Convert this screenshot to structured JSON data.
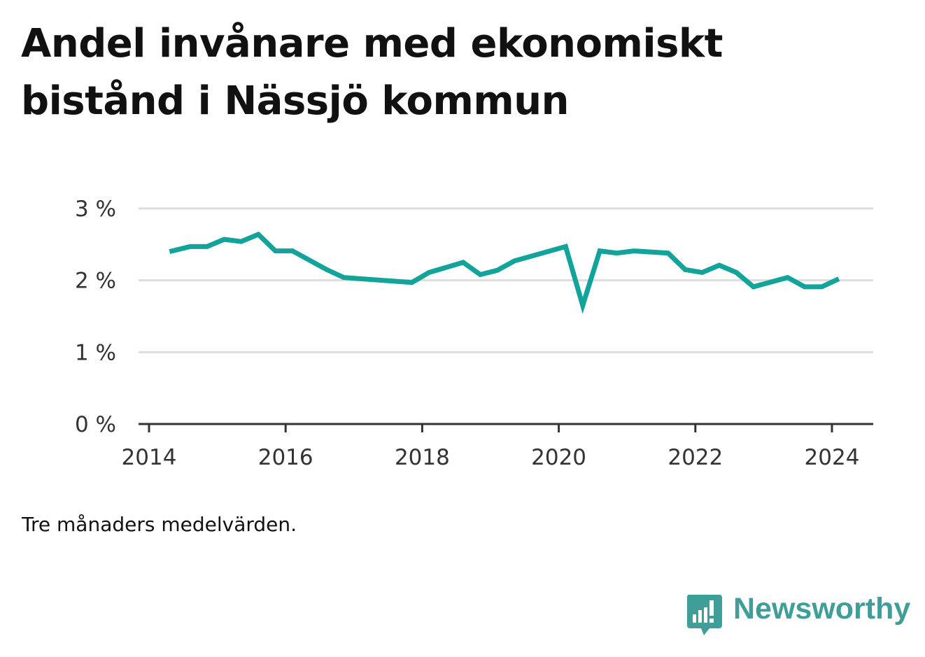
{
  "chart_data": {
    "type": "line",
    "title": "Andel invånare med ekonomiskt bistånd i Nässjö kommun",
    "note": "Tre månaders medelvärden.",
    "xlabel": "",
    "ylabel": "",
    "ylim": [
      0,
      3
    ],
    "xlim": [
      2014.0,
      2024.3
    ],
    "y_ticks": [
      {
        "value": 0,
        "label": "0 %"
      },
      {
        "value": 1,
        "label": "1 %"
      },
      {
        "value": 2,
        "label": "2 %"
      },
      {
        "value": 3,
        "label": "3 %"
      }
    ],
    "x_ticks": [
      {
        "value": 2014,
        "label": "2014"
      },
      {
        "value": 2016,
        "label": "2016"
      },
      {
        "value": 2018,
        "label": "2018"
      },
      {
        "value": 2020,
        "label": "2020"
      },
      {
        "value": 2022,
        "label": "2022"
      },
      {
        "value": 2024,
        "label": "2024"
      }
    ],
    "grid": true,
    "line_color": "#12a39a",
    "series": [
      {
        "x": [
          2014.3,
          2014.6,
          2014.85,
          2015.1,
          2015.35,
          2015.6,
          2015.85,
          2016.1,
          2016.6,
          2016.85,
          2017.85,
          2018.1,
          2018.6,
          2018.85,
          2019.1,
          2019.35,
          2020.1,
          2020.35,
          2020.6,
          2020.85,
          2021.1,
          2021.6,
          2021.85,
          2022.1,
          2022.35,
          2022.6,
          2022.85,
          2023.35,
          2023.6,
          2023.85,
          2024.1
        ],
        "y": [
          2.4,
          2.47,
          2.47,
          2.57,
          2.54,
          2.64,
          2.41,
          2.41,
          2.15,
          2.04,
          1.97,
          2.11,
          2.25,
          2.08,
          2.14,
          2.27,
          2.47,
          1.65,
          2.41,
          2.38,
          2.41,
          2.38,
          2.15,
          2.11,
          2.21,
          2.11,
          1.91,
          2.04,
          1.91,
          1.91,
          2.02
        ]
      }
    ]
  },
  "brand": {
    "name": "Newsworthy",
    "logo_icon": "newsworthy-logo-icon",
    "color": "#3f9e97"
  }
}
